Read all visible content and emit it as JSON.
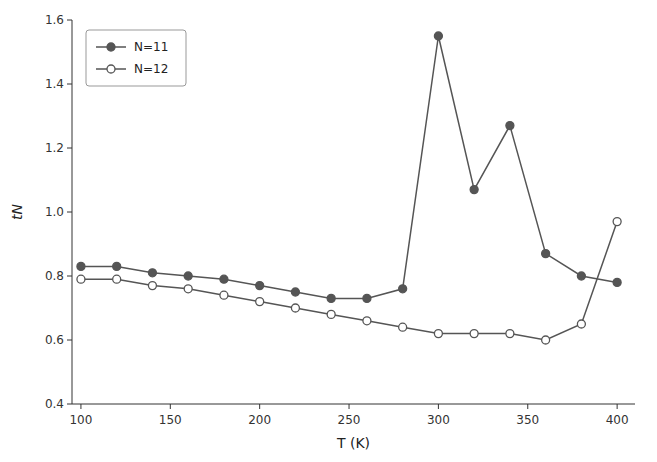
{
  "chart_data": {
    "type": "line",
    "x": [
      100,
      120,
      140,
      160,
      180,
      200,
      220,
      240,
      260,
      280,
      300,
      320,
      340,
      360,
      380,
      400
    ],
    "series": [
      {
        "name": "N=11",
        "color": "#555555",
        "marker": "filled",
        "values": [
          0.83,
          0.83,
          0.81,
          0.8,
          0.79,
          0.77,
          0.75,
          0.73,
          0.73,
          0.76,
          1.55,
          1.07,
          1.27,
          0.87,
          0.8,
          0.78
        ]
      },
      {
        "name": "N=12",
        "color": "#555555",
        "marker": "open",
        "values": [
          0.79,
          0.79,
          0.77,
          0.76,
          0.74,
          0.72,
          0.7,
          0.68,
          0.66,
          0.64,
          0.62,
          0.62,
          0.62,
          0.6,
          0.65,
          0.97
        ]
      }
    ],
    "xlabel": "T (K)",
    "ylabel": "tN",
    "xlim": [
      95,
      410
    ],
    "ylim": [
      0.4,
      1.6
    ],
    "xticks": [
      100,
      150,
      200,
      250,
      300,
      350,
      400
    ],
    "yticks": [
      0.4,
      0.6,
      0.8,
      {
        "value": 1,
        "label": "1.0"
      },
      1.2,
      1.4,
      1.6
    ],
    "grid": false,
    "legend": "upper left"
  }
}
